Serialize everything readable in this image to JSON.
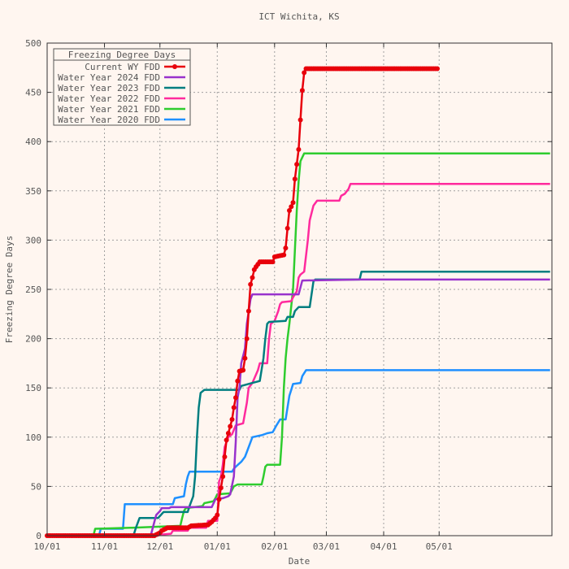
{
  "chart_data": {
    "type": "line",
    "title": "ICT Wichita, KS",
    "xlabel": "Date",
    "ylabel": "Freezing Degree Days",
    "grid": true,
    "legend_title": "Freezing Degree Days",
    "legend_position": "top-left",
    "xlim": [
      "10/01",
      "06/30"
    ],
    "ylim": [
      0,
      500
    ],
    "x_ticks": [
      "10/01",
      "11/01",
      "12/01",
      "01/01",
      "02/01",
      "03/01",
      "04/01",
      "05/01"
    ],
    "y_ticks": [
      "0",
      "50",
      "100",
      "150",
      "200",
      "250",
      "300",
      "350",
      "400",
      "450",
      "500"
    ],
    "series": [
      {
        "name": "Current WY FDD",
        "color": "#e8000b",
        "marker": true,
        "points": [
          [
            "10/01",
            0
          ],
          [
            "11/28",
            0
          ],
          [
            "12/01",
            3
          ],
          [
            "12/02",
            5
          ],
          [
            "12/05",
            8
          ],
          [
            "12/16",
            8
          ],
          [
            "12/18",
            10
          ],
          [
            "12/27",
            11
          ],
          [
            "12/29",
            14
          ],
          [
            "12/31",
            18
          ],
          [
            "01/01",
            21
          ],
          [
            "01/02",
            37
          ],
          [
            "01/04",
            60
          ],
          [
            "01/05",
            80
          ],
          [
            "01/06",
            97
          ],
          [
            "01/07",
            104
          ],
          [
            "01/09",
            118
          ],
          [
            "01/10",
            130
          ],
          [
            "01/11",
            140
          ],
          [
            "01/12",
            157
          ],
          [
            "01/13",
            167
          ],
          [
            "01/15",
            168
          ],
          [
            "01/16",
            180
          ],
          [
            "01/17",
            200
          ],
          [
            "01/18",
            228
          ],
          [
            "01/19",
            255
          ],
          [
            "01/20",
            262
          ],
          [
            "01/21",
            270
          ],
          [
            "01/22",
            273
          ],
          [
            "01/24",
            278
          ],
          [
            "01/31",
            278
          ],
          [
            "02/01",
            283
          ],
          [
            "02/06",
            285
          ],
          [
            "02/07",
            292
          ],
          [
            "02/08",
            312
          ],
          [
            "02/09",
            330
          ],
          [
            "02/11",
            338
          ],
          [
            "02/12",
            362
          ],
          [
            "02/14",
            392
          ],
          [
            "02/15",
            422
          ],
          [
            "02/16",
            452
          ],
          [
            "02/17",
            470
          ],
          [
            "02/18",
            474
          ],
          [
            "04/30",
            474
          ]
        ]
      },
      {
        "name": "Water Year 2024 FDD",
        "color": "#9932cc",
        "marker": false,
        "points": [
          [
            "10/01",
            0
          ],
          [
            "11/26",
            0
          ],
          [
            "11/28",
            14
          ],
          [
            "11/29",
            21
          ],
          [
            "12/01",
            25
          ],
          [
            "12/02",
            28
          ],
          [
            "12/06",
            28
          ],
          [
            "12/07",
            29
          ],
          [
            "12/29",
            29
          ],
          [
            "12/31",
            37
          ],
          [
            "01/04",
            38
          ],
          [
            "01/07",
            40
          ],
          [
            "01/08",
            42
          ],
          [
            "01/10",
            60
          ],
          [
            "01/11",
            95
          ],
          [
            "01/12",
            140
          ],
          [
            "01/13",
            150
          ],
          [
            "01/14",
            175
          ],
          [
            "01/16",
            190
          ],
          [
            "01/17",
            215
          ],
          [
            "01/19",
            240
          ],
          [
            "01/20",
            245
          ],
          [
            "02/14",
            245
          ],
          [
            "02/16",
            259
          ],
          [
            "03/19",
            260
          ],
          [
            "06/30",
            260
          ]
        ]
      },
      {
        "name": "Water Year 2023 FDD",
        "color": "#007e80",
        "marker": false,
        "points": [
          [
            "10/01",
            0
          ],
          [
            "11/16",
            0
          ],
          [
            "11/17",
            2
          ],
          [
            "11/18",
            8
          ],
          [
            "11/20",
            18
          ],
          [
            "11/30",
            18
          ],
          [
            "12/01",
            20
          ],
          [
            "12/02",
            22
          ],
          [
            "12/03",
            24
          ],
          [
            "12/16",
            24
          ],
          [
            "12/17",
            30
          ],
          [
            "12/19",
            40
          ],
          [
            "12/20",
            60
          ],
          [
            "12/21",
            100
          ],
          [
            "12/22",
            130
          ],
          [
            "12/23",
            145
          ],
          [
            "12/25",
            148
          ],
          [
            "01/13",
            148
          ],
          [
            "01/14",
            152
          ],
          [
            "01/20",
            155
          ],
          [
            "01/24",
            157
          ],
          [
            "01/26",
            180
          ],
          [
            "01/27",
            200
          ],
          [
            "01/28",
            215
          ],
          [
            "01/29",
            217
          ],
          [
            "02/07",
            218
          ],
          [
            "02/08",
            222
          ],
          [
            "02/11",
            222
          ],
          [
            "02/12",
            228
          ],
          [
            "02/14",
            232
          ],
          [
            "02/20",
            232
          ],
          [
            "02/22",
            258
          ],
          [
            "02/23",
            260
          ],
          [
            "03/19",
            260
          ],
          [
            "03/20",
            268
          ],
          [
            "06/30",
            268
          ]
        ]
      },
      {
        "name": "Water Year 2022 FDD",
        "color": "#ff2a9d",
        "marker": false,
        "points": [
          [
            "10/01",
            0
          ],
          [
            "11/30",
            0
          ],
          [
            "12/01",
            1
          ],
          [
            "12/07",
            2
          ],
          [
            "12/08",
            5
          ],
          [
            "12/16",
            5
          ],
          [
            "12/17",
            8
          ],
          [
            "12/26",
            8
          ],
          [
            "12/27",
            15
          ],
          [
            "01/01",
            15
          ],
          [
            "01/02",
            55
          ],
          [
            "01/03",
            60
          ],
          [
            "01/04",
            72
          ],
          [
            "01/05",
            90
          ],
          [
            "01/07",
            100
          ],
          [
            "01/09",
            103
          ],
          [
            "01/11",
            112
          ],
          [
            "01/15",
            114
          ],
          [
            "01/17",
            135
          ],
          [
            "01/18",
            150
          ],
          [
            "01/20",
            155
          ],
          [
            "01/23",
            168
          ],
          [
            "01/24",
            175
          ],
          [
            "01/28",
            175
          ],
          [
            "01/29",
            200
          ],
          [
            "01/30",
            215
          ],
          [
            "02/01",
            218
          ],
          [
            "02/03",
            228
          ],
          [
            "02/04",
            235
          ],
          [
            "02/05",
            237
          ],
          [
            "02/10",
            238
          ],
          [
            "02/11",
            242
          ],
          [
            "02/13",
            248
          ],
          [
            "02/14",
            262
          ],
          [
            "02/15",
            265
          ],
          [
            "02/17",
            268
          ],
          [
            "02/19",
            300
          ],
          [
            "02/20",
            320
          ],
          [
            "02/22",
            335
          ],
          [
            "02/24",
            340
          ],
          [
            "03/08",
            340
          ],
          [
            "03/09",
            345
          ],
          [
            "03/11",
            347
          ],
          [
            "03/13",
            352
          ],
          [
            "03/14",
            357
          ],
          [
            "06/30",
            357
          ]
        ]
      },
      {
        "name": "Water Year 2021 FDD",
        "color": "#2ecc2e",
        "marker": false,
        "points": [
          [
            "10/01",
            0
          ],
          [
            "10/26",
            0
          ],
          [
            "10/27",
            7
          ],
          [
            "11/15",
            8
          ],
          [
            "11/16",
            8
          ],
          [
            "12/12",
            10
          ],
          [
            "12/13",
            18
          ],
          [
            "12/14",
            25
          ],
          [
            "12/15",
            28
          ],
          [
            "12/24",
            30
          ],
          [
            "12/25",
            33
          ],
          [
            "12/30",
            35
          ],
          [
            "12/31",
            38
          ],
          [
            "01/01",
            42
          ],
          [
            "01/08",
            43
          ],
          [
            "01/10",
            50
          ],
          [
            "01/11",
            51
          ],
          [
            "01/12",
            52
          ],
          [
            "01/25",
            52
          ],
          [
            "01/26",
            60
          ],
          [
            "01/27",
            70
          ],
          [
            "01/28",
            72
          ],
          [
            "02/04",
            72
          ],
          [
            "02/05",
            100
          ],
          [
            "02/06",
            150
          ],
          [
            "02/07",
            180
          ],
          [
            "02/08",
            200
          ],
          [
            "02/09",
            215
          ],
          [
            "02/11",
            250
          ],
          [
            "02/12",
            290
          ],
          [
            "02/13",
            330
          ],
          [
            "02/14",
            360
          ],
          [
            "02/15",
            380
          ],
          [
            "02/17",
            388
          ],
          [
            "06/30",
            388
          ]
        ]
      },
      {
        "name": "Water Year 2020 FDD",
        "color": "#1e90ff",
        "marker": false,
        "points": [
          [
            "10/01",
            0
          ],
          [
            "10/29",
            0
          ],
          [
            "10/30",
            7
          ],
          [
            "11/11",
            7
          ],
          [
            "11/12",
            32
          ],
          [
            "12/08",
            32
          ],
          [
            "12/09",
            38
          ],
          [
            "12/14",
            40
          ],
          [
            "12/15",
            52
          ],
          [
            "12/16",
            60
          ],
          [
            "12/17",
            65
          ],
          [
            "01/09",
            65
          ],
          [
            "01/10",
            68
          ],
          [
            "01/11",
            70
          ],
          [
            "01/14",
            75
          ],
          [
            "01/16",
            80
          ],
          [
            "01/17",
            85
          ],
          [
            "01/19",
            95
          ],
          [
            "01/20",
            100
          ],
          [
            "01/25",
            102
          ],
          [
            "01/28",
            104
          ],
          [
            "01/31",
            105
          ],
          [
            "02/02",
            112
          ],
          [
            "02/04",
            118
          ],
          [
            "02/07",
            118
          ],
          [
            "02/08",
            130
          ],
          [
            "02/09",
            142
          ],
          [
            "02/10",
            148
          ],
          [
            "02/11",
            154
          ],
          [
            "02/15",
            155
          ],
          [
            "02/16",
            162
          ],
          [
            "02/18",
            168
          ],
          [
            "06/30",
            168
          ]
        ]
      }
    ]
  }
}
